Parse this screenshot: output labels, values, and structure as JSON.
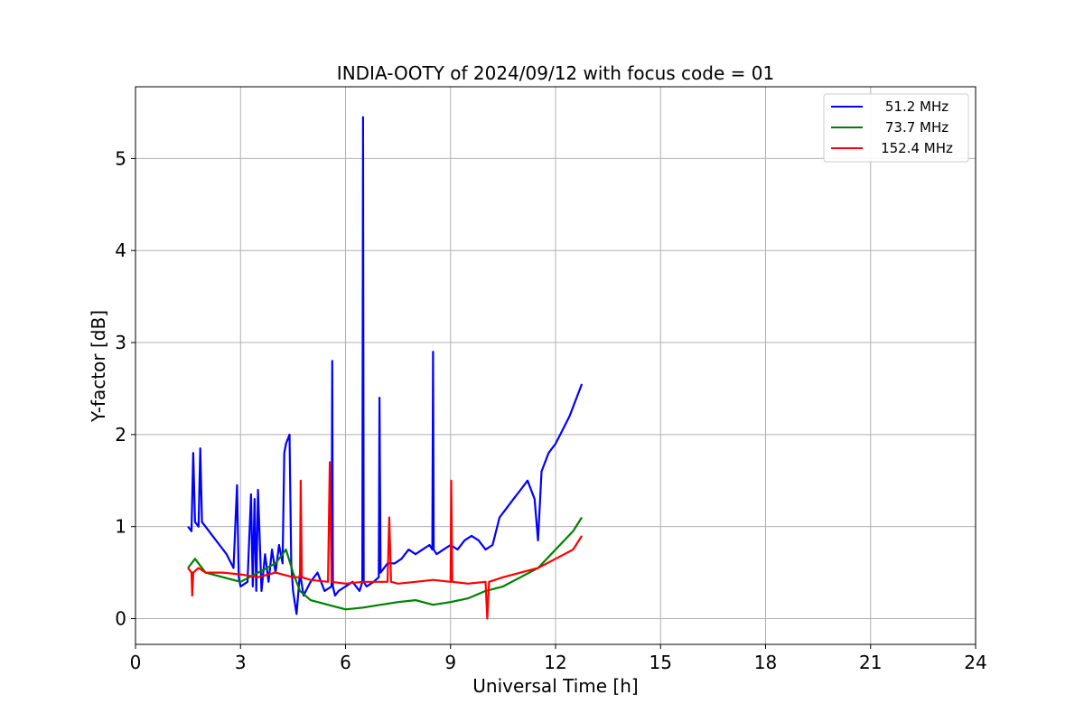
{
  "chart_data": {
    "type": "line",
    "title": "INDIA-OOTY of 2024/09/12 with focus code = 01",
    "xlabel": "Universal Time [h]",
    "ylabel": "Y-factor [dB]",
    "xlim": [
      0,
      24
    ],
    "ylim": [
      -0.28,
      5.78
    ],
    "xticks": [
      0,
      3,
      6,
      9,
      12,
      15,
      18,
      21,
      24
    ],
    "yticks": [
      0,
      1,
      2,
      3,
      4,
      5
    ],
    "grid": true,
    "legend_position": "top-right",
    "series": [
      {
        "name": "51.2 MHz",
        "color": "#0000ff",
        "x": [
          1.5,
          1.6,
          1.65,
          1.7,
          1.8,
          1.85,
          1.9,
          2.0,
          2.2,
          2.4,
          2.6,
          2.8,
          2.9,
          2.95,
          3.0,
          3.2,
          3.3,
          3.35,
          3.4,
          3.45,
          3.5,
          3.6,
          3.7,
          3.8,
          3.9,
          4.0,
          4.1,
          4.2,
          4.25,
          4.3,
          4.4,
          4.45,
          4.5,
          4.6,
          4.7,
          4.8,
          5.0,
          5.2,
          5.4,
          5.6,
          5.62,
          5.64,
          5.7,
          5.8,
          6.0,
          6.2,
          6.4,
          6.48,
          6.5,
          6.52,
          6.6,
          6.8,
          6.95,
          6.97,
          7.0,
          7.2,
          7.4,
          7.6,
          7.8,
          8.0,
          8.2,
          8.4,
          8.48,
          8.5,
          8.52,
          8.6,
          8.8,
          9.0,
          9.2,
          9.4,
          9.6,
          9.8,
          10.0,
          10.2,
          10.4,
          10.6,
          10.8,
          11.0,
          11.2,
          11.4,
          11.5,
          11.6,
          11.8,
          12.0,
          12.2,
          12.4,
          12.6,
          12.75
        ],
        "y": [
          1.0,
          0.95,
          1.8,
          1.05,
          1.0,
          1.85,
          1.05,
          1.0,
          0.9,
          0.8,
          0.7,
          0.55,
          1.45,
          0.45,
          0.35,
          0.4,
          1.35,
          0.35,
          1.3,
          0.3,
          1.4,
          0.3,
          0.7,
          0.4,
          0.75,
          0.5,
          0.8,
          0.6,
          1.8,
          1.9,
          2.0,
          0.6,
          0.3,
          0.05,
          0.5,
          0.25,
          0.4,
          0.5,
          0.3,
          0.35,
          2.8,
          0.35,
          0.25,
          0.3,
          0.35,
          0.4,
          0.3,
          0.4,
          5.45,
          0.4,
          0.35,
          0.4,
          0.45,
          2.4,
          0.5,
          0.6,
          0.6,
          0.65,
          0.75,
          0.7,
          0.75,
          0.8,
          0.75,
          2.9,
          0.75,
          0.7,
          0.75,
          0.8,
          0.75,
          0.85,
          0.9,
          0.85,
          0.75,
          0.8,
          1.1,
          1.2,
          1.3,
          1.4,
          1.5,
          1.3,
          0.85,
          1.6,
          1.8,
          1.9,
          2.05,
          2.2,
          2.4,
          2.55
        ]
      },
      {
        "name": "73.7 MHz",
        "color": "#008000",
        "x": [
          1.5,
          1.7,
          2.0,
          2.5,
          3.0,
          3.5,
          4.0,
          4.3,
          4.5,
          4.7,
          5.0,
          5.5,
          6.0,
          6.5,
          7.0,
          7.5,
          8.0,
          8.5,
          9.0,
          9.5,
          10.0,
          10.5,
          11.0,
          11.5,
          12.0,
          12.5,
          12.75
        ],
        "y": [
          0.55,
          0.65,
          0.5,
          0.45,
          0.4,
          0.5,
          0.6,
          0.75,
          0.5,
          0.3,
          0.2,
          0.15,
          0.1,
          0.12,
          0.15,
          0.18,
          0.2,
          0.15,
          0.18,
          0.22,
          0.3,
          0.35,
          0.45,
          0.55,
          0.75,
          0.95,
          1.1
        ]
      },
      {
        "name": "152.4 MHz",
        "color": "#ff0000",
        "x": [
          1.5,
          1.6,
          1.62,
          1.65,
          1.8,
          2.0,
          2.5,
          3.0,
          3.5,
          4.0,
          4.5,
          4.7,
          4.72,
          4.75,
          5.0,
          5.5,
          5.55,
          5.6,
          6.0,
          6.5,
          7.0,
          7.2,
          7.25,
          7.3,
          7.5,
          8.0,
          8.5,
          9.0,
          9.02,
          9.05,
          9.5,
          10.0,
          10.05,
          10.1,
          10.5,
          11.0,
          11.5,
          12.0,
          12.5,
          12.75
        ],
        "y": [
          0.55,
          0.5,
          0.25,
          0.5,
          0.55,
          0.5,
          0.5,
          0.48,
          0.45,
          0.5,
          0.45,
          0.45,
          1.5,
          0.45,
          0.42,
          0.4,
          1.7,
          0.4,
          0.38,
          0.4,
          0.4,
          0.4,
          1.1,
          0.4,
          0.38,
          0.4,
          0.42,
          0.4,
          1.5,
          0.4,
          0.38,
          0.4,
          0.0,
          0.4,
          0.45,
          0.5,
          0.55,
          0.65,
          0.75,
          0.9
        ]
      }
    ]
  }
}
